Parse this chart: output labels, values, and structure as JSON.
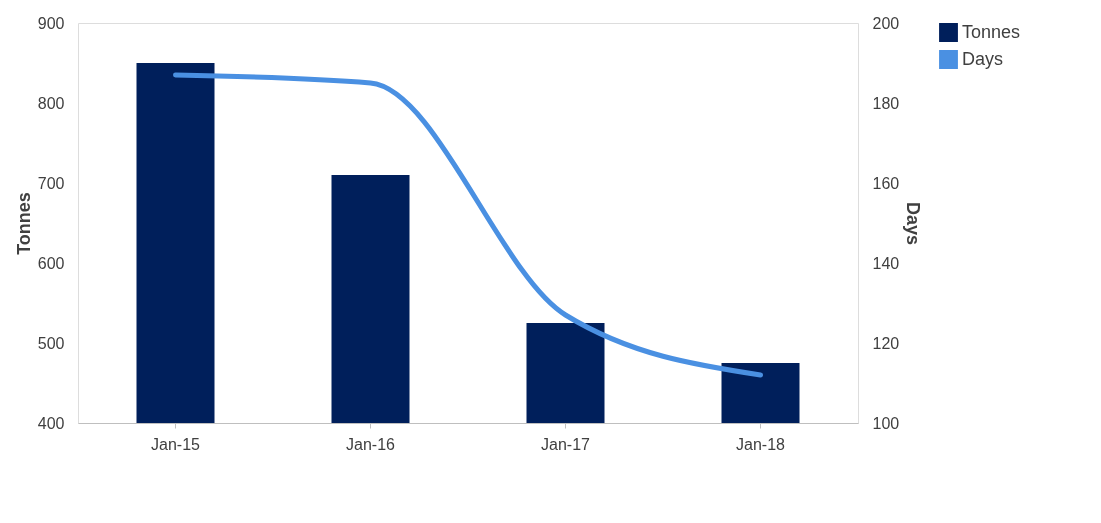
{
  "chart_data": {
    "type": "bar",
    "categories": [
      "Jan-15",
      "Jan-16",
      "Jan-17",
      "Jan-18"
    ],
    "ylabel": "Tonnes",
    "y2label": "Days",
    "series": [
      {
        "name": "Tonnes",
        "color": "#001f5b",
        "values": [
          850,
          710,
          525,
          475
        ]
      },
      {
        "name": "Days",
        "type": "line",
        "axis": "y2",
        "color": "#4a90e2",
        "values": [
          187,
          185,
          127,
          112
        ]
      }
    ],
    "ylim": [
      400,
      900
    ],
    "yticks": [
      400,
      500,
      600,
      700,
      800,
      900
    ],
    "y2lim": [
      100,
      200
    ],
    "y2ticks": [
      100,
      120,
      140,
      160,
      180,
      200
    ],
    "grid": false,
    "legend": "right",
    "marker": "none",
    "line_style": "solid"
  }
}
